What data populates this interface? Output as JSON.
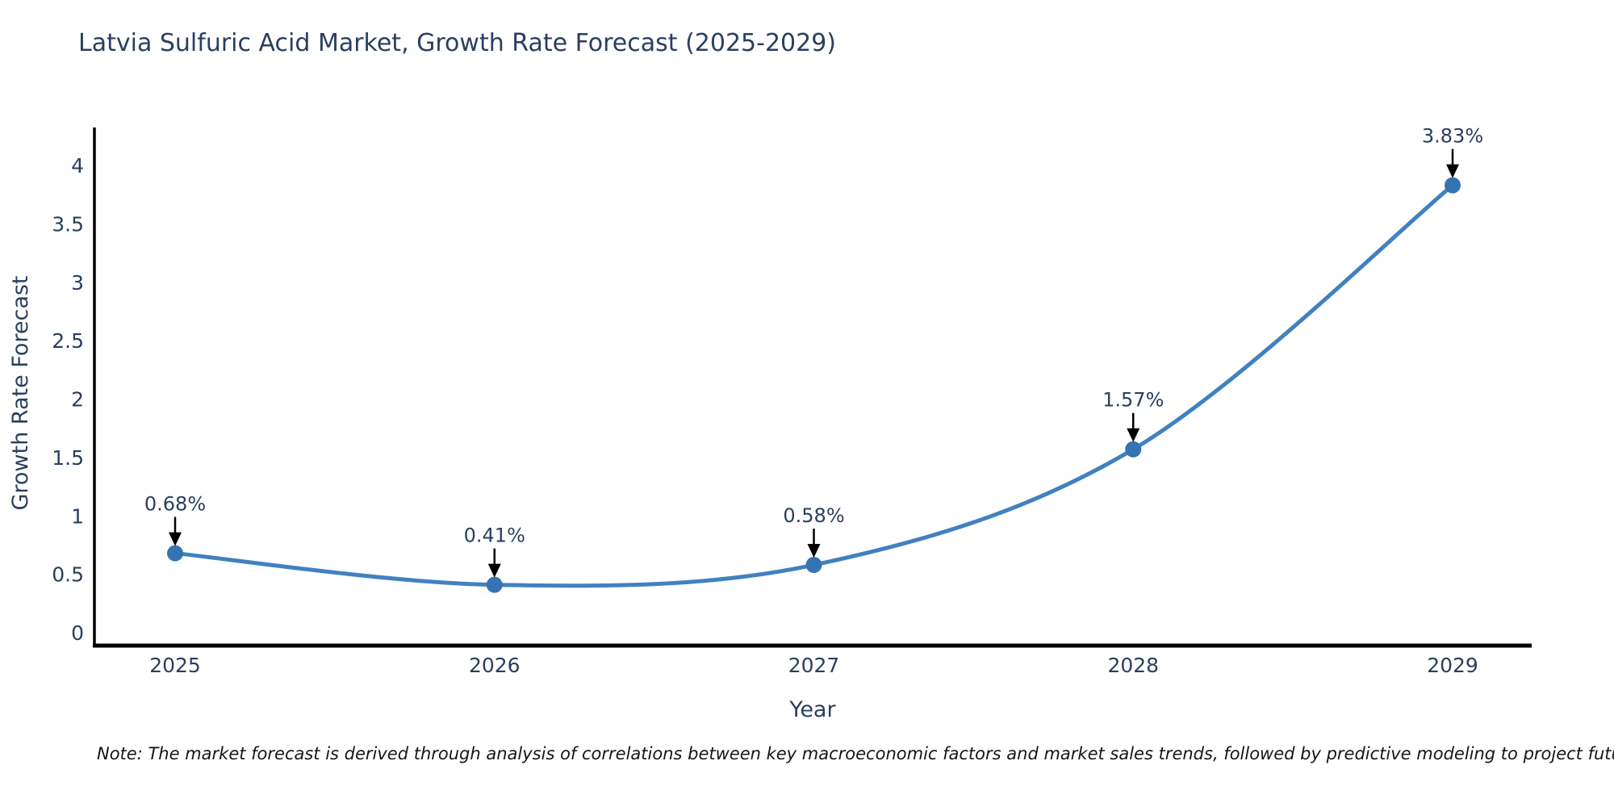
{
  "title": "Latvia Sulfuric Acid Market, Growth Rate Forecast (2025-2029)",
  "note": "Note: The market forecast is derived through analysis of correlations between key macroeconomic factors and market sales trends, followed by predictive modeling to project future sales",
  "chart_data": {
    "type": "line",
    "title": "Latvia Sulfuric Acid Market, Growth Rate Forecast (2025-2029)",
    "x": [
      2025,
      2026,
      2027,
      2028,
      2029
    ],
    "series": [
      {
        "name": "Growth Rate Forecast",
        "values": [
          0.68,
          0.41,
          0.58,
          1.57,
          3.83
        ],
        "point_labels": [
          "0.68%",
          "0.41%",
          "0.58%",
          "1.57%",
          "3.83%"
        ]
      }
    ],
    "xlabel": "Year",
    "ylabel": "Growth Rate Forecast",
    "xticks": [
      "2025",
      "2026",
      "2027",
      "2028",
      "2029"
    ],
    "yticks": [
      0,
      0.5,
      1,
      1.5,
      2,
      2.5,
      3,
      3.5,
      4
    ],
    "ylim": [
      0,
      4
    ],
    "grid": false,
    "legend_position": "none",
    "line_style": "spline",
    "colors": {
      "line": "#4181c0",
      "marker": "#3573b2",
      "axis_line": "#000000",
      "text": "#2a3f5f",
      "annotation_arrow": "#000000",
      "background": "#ffffff"
    }
  }
}
